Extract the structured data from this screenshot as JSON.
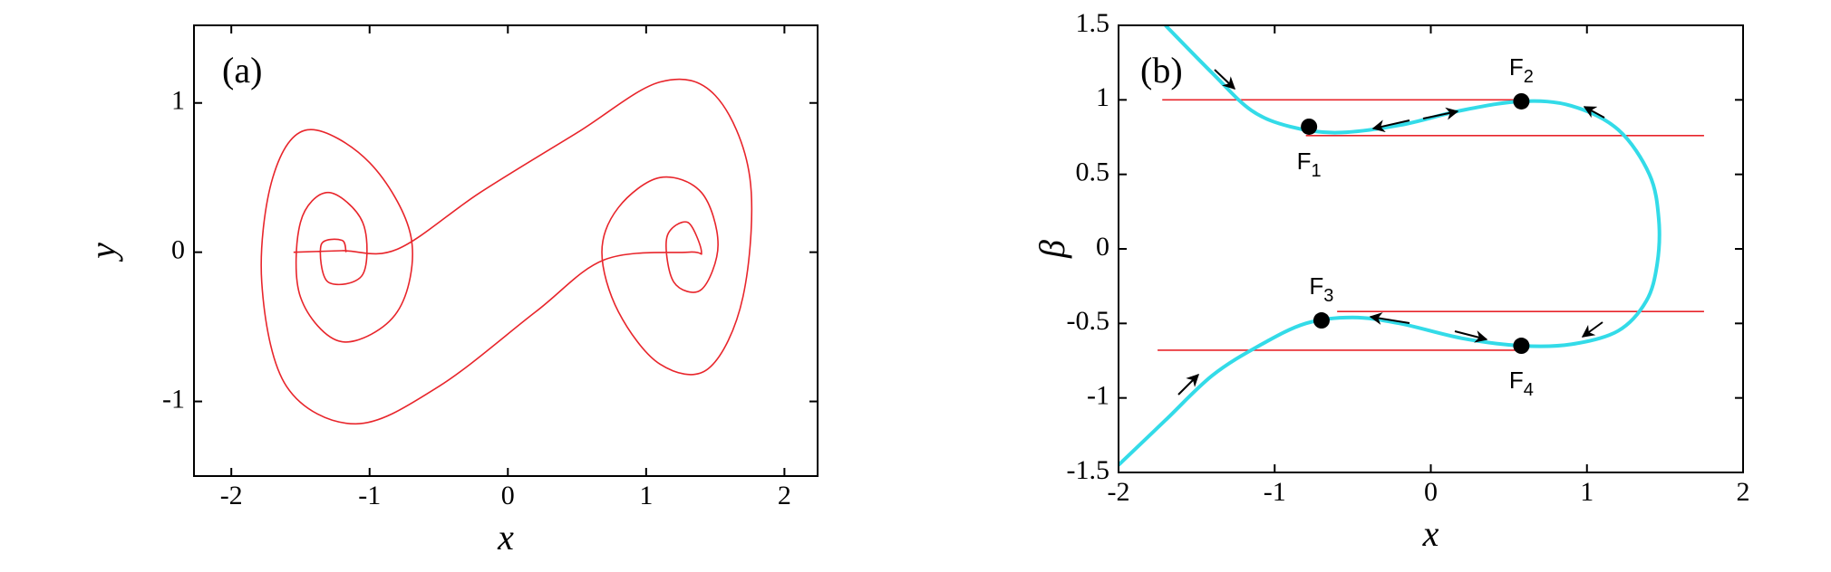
{
  "chart_data": [
    {
      "type": "line",
      "annotation": "(a)",
      "xlabel": "x",
      "ylabel": "y",
      "xlim": [
        -2.27,
        2.24
      ],
      "ylim": [
        -1.5,
        1.52
      ],
      "xticks": [
        -2,
        -1,
        0,
        1,
        2
      ],
      "yticks": [
        -1,
        0,
        1
      ],
      "series": [
        {
          "color": "#e8252b",
          "x": [
            -1.55,
            -1.2,
            -0.8,
            -0.2,
            0.5,
            1.1,
            1.5,
            1.75,
            1.7,
            1.45,
            1.1,
            0.8,
            0.68,
            0.8,
            1.1,
            1.4,
            1.52,
            1.4,
            1.2,
            1.15,
            1.3,
            1.4,
            1.3,
            0.7,
            0.2,
            -0.5,
            -1.1,
            -1.6,
            -1.78,
            -1.7,
            -1.45,
            -1.0,
            -0.7,
            -0.8,
            -1.2,
            -1.5,
            -1.5,
            -1.3,
            -1.05,
            -1.05,
            -1.3,
            -1.35,
            -1.2,
            -1.17
          ],
          "y": [
            0,
            0.01,
            0.02,
            0.4,
            0.8,
            1.14,
            1.05,
            0.5,
            -0.3,
            -0.78,
            -0.75,
            -0.4,
            0,
            0.3,
            0.5,
            0.4,
            0.05,
            -0.25,
            -0.2,
            0.1,
            0.2,
            0,
            0,
            -0.05,
            -0.4,
            -0.9,
            -1.15,
            -0.9,
            -0.2,
            0.5,
            0.82,
            0.6,
            0.1,
            -0.4,
            -0.6,
            -0.3,
            0.2,
            0.4,
            0.2,
            -0.15,
            -0.2,
            0.05,
            0.08,
            0
          ]
        }
      ]
    },
    {
      "type": "line",
      "annotation": "(b)",
      "xlabel": "x",
      "ylabel": "β",
      "xlim": [
        -2,
        2
      ],
      "ylim": [
        -1.5,
        1.5
      ],
      "xticks": [
        -2,
        -1,
        0,
        1,
        2
      ],
      "yticks": [
        -1.5,
        -1,
        -0.5,
        0,
        0.5,
        1,
        1.5
      ],
      "series": [
        {
          "color": "#e8252b",
          "x": [
            -1.72,
            0.58
          ],
          "y": [
            1.0,
            1.0
          ]
        },
        {
          "color": "#e8252b",
          "x": [
            -0.8,
            1.75
          ],
          "y": [
            0.76,
            0.76
          ]
        },
        {
          "color": "#e8252b",
          "x": [
            -0.6,
            1.75
          ],
          "y": [
            -0.42,
            -0.42
          ]
        },
        {
          "color": "#e8252b",
          "x": [
            -1.75,
            0.58
          ],
          "y": [
            -0.68,
            -0.68
          ]
        },
        {
          "color": "#33dbe8",
          "x": [
            -1.7,
            -1.4,
            -1.15,
            -0.9,
            -0.6,
            -0.2,
            0.2,
            0.58,
            0.9,
            1.2,
            1.4,
            1.46,
            1.45,
            1.38,
            1.2,
            0.9,
            0.58,
            0.2,
            -0.2,
            -0.5,
            -0.8,
            -1.1,
            -1.4,
            -1.7,
            -2
          ],
          "y": [
            1.5,
            1.18,
            0.93,
            0.82,
            0.78,
            0.83,
            0.93,
            0.99,
            0.96,
            0.8,
            0.5,
            0.2,
            -0.1,
            -0.35,
            -0.55,
            -0.64,
            -0.65,
            -0.6,
            -0.5,
            -0.46,
            -0.5,
            -0.65,
            -0.85,
            -1.15,
            -1.45
          ]
        }
      ],
      "points": {
        "x": [
          -0.78,
          0.58,
          -0.7,
          0.58
        ],
        "y": [
          0.82,
          0.99,
          -0.48,
          -0.65
        ],
        "labels": [
          "F1",
          "F2",
          "F3",
          "F4"
        ]
      }
    }
  ]
}
